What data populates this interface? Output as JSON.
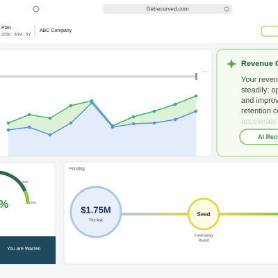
{
  "browser": {
    "url": "Getrecurved.com"
  },
  "header": {
    "plan": "Plan",
    "plan_details": "2030 , 60M , 5Y",
    "company": "ABC Company"
  },
  "chart_data": {
    "type": "line",
    "series": [
      {
        "color": "#3cb371",
        "fill": "#dcf2d6",
        "values": [
          43,
          55,
          50,
          68,
          75,
          39,
          52,
          60,
          70,
          82
        ]
      },
      {
        "color": "#5b8ee6",
        "fill": "#e2ecfb",
        "values": [
          33,
          37,
          26,
          43,
          72,
          37,
          42,
          43,
          48,
          60
        ]
      }
    ],
    "ylim": [
      0,
      110
    ],
    "grid": false
  },
  "insight": {
    "title": "Revenue O",
    "lines": [
      "Your revenu",
      "steadily; opt",
      "and improv",
      "retention co",
      "accelerate v"
    ],
    "button": "AI Reco"
  },
  "gauge": {
    "value_label": "%",
    "ticks": [
      "80%",
      "100%"
    ]
  },
  "banner": {
    "text": "You are Warren"
  },
  "funding": {
    "title": "Funding",
    "ask_amount": "$1.75M",
    "ask_label": "The Ask",
    "stage": "Seed",
    "stage_label": [
      "Fundraising",
      "Round"
    ]
  }
}
